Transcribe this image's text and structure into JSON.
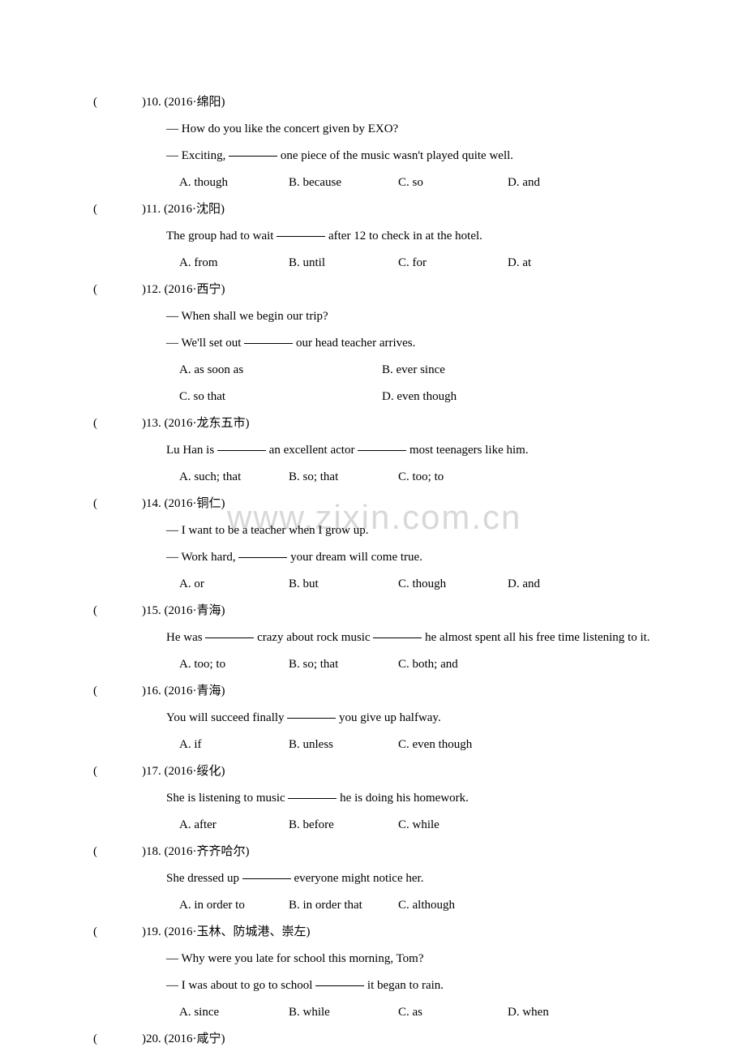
{
  "watermark": "www.zixin.com.cn",
  "questions": [
    {
      "num": "10",
      "source": "(2016·绵阳)",
      "lines": [
        "— How do you like the concert given by EXO?",
        "— Exciting, ___  one piece of the music wasn't played quite well."
      ],
      "choices": [
        "A. though",
        "B. because",
        "C. so",
        "D. and"
      ],
      "layout": "four"
    },
    {
      "num": "11",
      "source": "(2016·沈阳)",
      "lines": [
        "The group had to wait ___ after 12 to check in at the hotel."
      ],
      "choices": [
        "A. from",
        "B. until",
        "C. for",
        "D. at"
      ],
      "layout": "four"
    },
    {
      "num": "12",
      "source": "(2016·西宁)",
      "lines": [
        "— When shall we begin our trip?",
        "— We'll set out ___ our head teacher arrives."
      ],
      "choices": [
        "A. as soon as",
        "B. ever since",
        "C. so that",
        "D. even though"
      ],
      "layout": "two"
    },
    {
      "num": "13",
      "source": "(2016·龙东五市)",
      "lines": [
        "Lu Han is ___ an excellent actor ___ most teenagers like him."
      ],
      "choices": [
        "A. such; that",
        "B. so; that",
        "C. too; to"
      ],
      "layout": "four"
    },
    {
      "num": "14",
      "source": "(2016·铜仁)",
      "lines": [
        "— I want to be a teacher when I grow up.",
        "— Work hard, ___ your dream will come true."
      ],
      "choices": [
        "A. or",
        "B. but",
        "C. though",
        "D. and"
      ],
      "layout": "four"
    },
    {
      "num": "15",
      "source": "(2016·青海)",
      "lines": [
        "He was ___ crazy about rock music ___ he almost spent all his free time listening to it."
      ],
      "choices": [
        "A. too; to",
        "B. so; that",
        "C. both; and"
      ],
      "layout": "four"
    },
    {
      "num": "16",
      "source": "(2016·青海)",
      "lines": [
        "You will succeed finally ___ you give up halfway."
      ],
      "choices": [
        "A. if",
        "B. unless",
        "C. even though"
      ],
      "layout": "four"
    },
    {
      "num": "17",
      "source": "(2016·绥化)",
      "lines": [
        "She is listening to music ___ he is doing his homework."
      ],
      "choices": [
        "A. after",
        "B. before",
        "C. while"
      ],
      "layout": "four"
    },
    {
      "num": "18",
      "source": "(2016·齐齐哈尔)",
      "lines": [
        "She dressed up ___ everyone might notice her."
      ],
      "choices": [
        "A. in order to",
        "B. in order that",
        "C. although"
      ],
      "layout": "four"
    },
    {
      "num": "19",
      "source": "(2016·玉林、防城港、崇左)",
      "lines": [
        "— Why were you late for school this morning, Tom?",
        "— I was about to go to school ___ it began to rain."
      ],
      "choices": [
        "A. since",
        "B. while",
        "C. as",
        "D. when"
      ],
      "layout": "four"
    },
    {
      "num": "20",
      "source": "(2016·咸宁)",
      "lines": [],
      "choices": [],
      "layout": "four"
    }
  ]
}
